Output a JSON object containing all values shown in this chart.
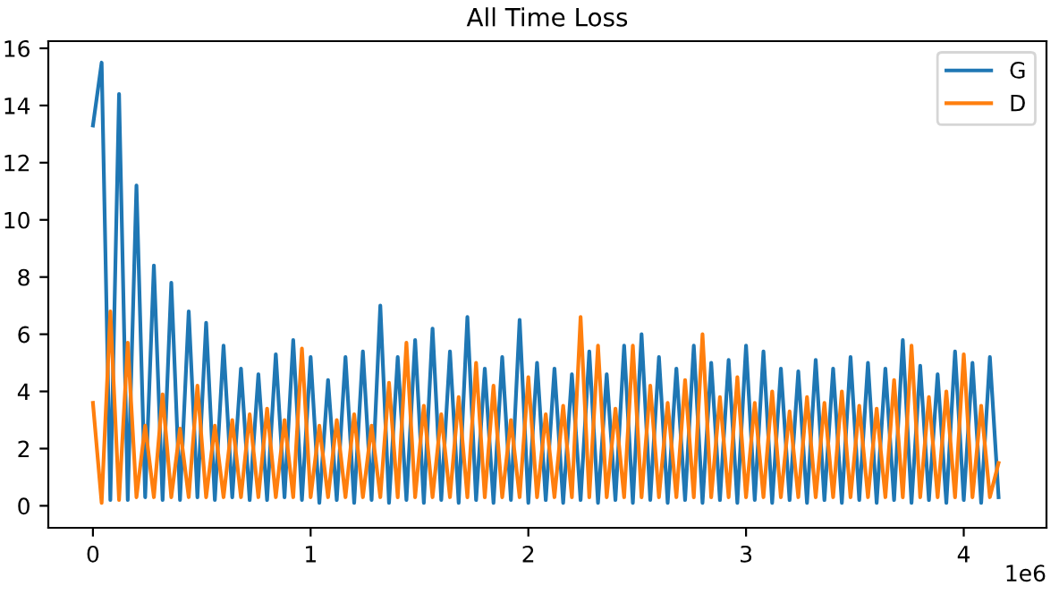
{
  "chart_data": {
    "type": "line",
    "title": "All Time Loss",
    "x": [
      0,
      0.04,
      0.08,
      0.12,
      0.16,
      0.2,
      0.24,
      0.28,
      0.32,
      0.36,
      0.4,
      0.44,
      0.48,
      0.52,
      0.56,
      0.6,
      0.64,
      0.68,
      0.72,
      0.76,
      0.8,
      0.84,
      0.88,
      0.92,
      0.96,
      1.0,
      1.04,
      1.08,
      1.12,
      1.16,
      1.2,
      1.24,
      1.28,
      1.32,
      1.36,
      1.4,
      1.44,
      1.48,
      1.52,
      1.56,
      1.6,
      1.64,
      1.68,
      1.72,
      1.76,
      1.8,
      1.84,
      1.88,
      1.92,
      1.96,
      2.0,
      2.04,
      2.08,
      2.12,
      2.16,
      2.2,
      2.24,
      2.28,
      2.32,
      2.36,
      2.4,
      2.44,
      2.48,
      2.52,
      2.56,
      2.6,
      2.64,
      2.68,
      2.72,
      2.76,
      2.8,
      2.84,
      2.88,
      2.92,
      2.96,
      3.0,
      3.04,
      3.08,
      3.12,
      3.16,
      3.2,
      3.24,
      3.28,
      3.32,
      3.36,
      3.4,
      3.44,
      3.48,
      3.52,
      3.56,
      3.6,
      3.64,
      3.68,
      3.72,
      3.76,
      3.8,
      3.84,
      3.88,
      3.92,
      3.96,
      4.0,
      4.04,
      4.08,
      4.12,
      4.16
    ],
    "series": [
      {
        "name": "G",
        "color": "#1f77b4",
        "values": [
          13.3,
          15.5,
          0.2,
          14.4,
          0.2,
          11.2,
          0.3,
          8.4,
          0.2,
          7.8,
          0.2,
          6.8,
          0.3,
          6.4,
          0.2,
          5.6,
          0.3,
          4.8,
          0.2,
          4.6,
          0.2,
          5.3,
          0.3,
          5.8,
          0.2,
          5.2,
          0.1,
          4.4,
          0.2,
          5.2,
          0.1,
          5.4,
          0.2,
          7.0,
          0.1,
          5.2,
          0.2,
          5.8,
          0.1,
          6.2,
          0.2,
          5.4,
          0.1,
          6.6,
          0.2,
          4.8,
          0.1,
          5.2,
          0.2,
          6.5,
          0.1,
          5.0,
          0.2,
          4.8,
          0.1,
          4.6,
          0.2,
          5.4,
          0.1,
          4.6,
          0.2,
          5.6,
          0.1,
          6.0,
          0.2,
          5.2,
          0.1,
          4.8,
          0.2,
          5.6,
          0.1,
          5.0,
          0.2,
          5.1,
          0.1,
          5.6,
          0.2,
          5.4,
          0.1,
          4.8,
          0.2,
          4.7,
          0.1,
          5.1,
          0.2,
          4.8,
          0.1,
          5.2,
          0.2,
          5.0,
          0.1,
          4.8,
          0.2,
          5.8,
          0.1,
          4.9,
          0.2,
          4.6,
          0.1,
          5.4,
          0.2,
          5.0,
          0.1,
          5.2,
          0.3
        ]
      },
      {
        "name": "D",
        "color": "#ff7f0e",
        "values": [
          3.6,
          0.1,
          6.8,
          0.2,
          5.7,
          0.3,
          2.8,
          0.3,
          3.9,
          0.3,
          2.7,
          0.3,
          4.2,
          0.3,
          2.8,
          0.3,
          3.0,
          0.3,
          3.2,
          0.3,
          3.4,
          0.3,
          3.0,
          0.3,
          5.5,
          0.3,
          2.8,
          0.3,
          3.0,
          0.3,
          3.2,
          0.3,
          2.8,
          0.3,
          4.3,
          0.3,
          5.7,
          0.3,
          3.5,
          0.3,
          3.2,
          0.3,
          3.8,
          0.3,
          5.0,
          0.3,
          4.2,
          0.3,
          3.0,
          0.3,
          4.5,
          0.3,
          3.2,
          0.3,
          3.5,
          0.3,
          6.6,
          0.3,
          5.6,
          0.3,
          3.4,
          0.3,
          5.6,
          0.3,
          4.2,
          0.3,
          3.6,
          0.3,
          4.4,
          0.3,
          6.0,
          0.3,
          3.8,
          0.3,
          4.5,
          0.3,
          3.6,
          0.3,
          4.0,
          0.3,
          3.3,
          0.3,
          3.8,
          0.3,
          3.6,
          0.3,
          4.0,
          0.3,
          3.5,
          0.3,
          3.4,
          0.3,
          4.4,
          0.3,
          5.6,
          0.3,
          3.8,
          0.3,
          4.0,
          0.3,
          5.3,
          0.3,
          3.5,
          0.3,
          1.5
        ]
      }
    ],
    "xlim": [
      -0.205,
      4.38
    ],
    "xticks": [
      0,
      1,
      2,
      3,
      4
    ],
    "ylim": [
      -0.77,
      16.25
    ],
    "yticks": [
      0,
      2,
      4,
      6,
      8,
      10,
      12,
      14,
      16
    ],
    "annotations": [
      "1e6"
    ],
    "legend": "top right",
    "grid": false,
    "marker": "none",
    "line_style": "solid"
  }
}
